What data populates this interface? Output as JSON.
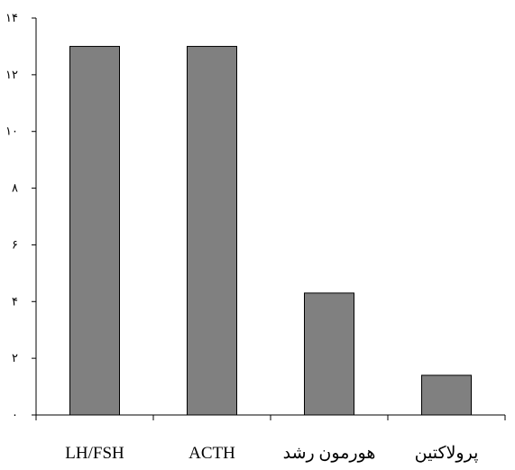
{
  "chart_data": {
    "type": "bar",
    "categories": [
      "LH/FSH",
      "ACTH",
      "هورمون رشد",
      "پرولاکتین"
    ],
    "values": [
      13,
      13,
      4.3,
      1.4
    ],
    "ylim": [
      0,
      14
    ],
    "y_ticks": [
      0,
      2,
      4,
      6,
      8,
      10,
      12,
      14
    ],
    "y_tick_labels": [
      "۰",
      "۲",
      "۴",
      "۶",
      "۸",
      "۱۰",
      "۱۲",
      "۱۴"
    ],
    "title": "",
    "xlabel": "",
    "ylabel": "",
    "grid": false,
    "legend": "none",
    "bar_color": "#808080",
    "bar_edge_color": "#000000"
  }
}
